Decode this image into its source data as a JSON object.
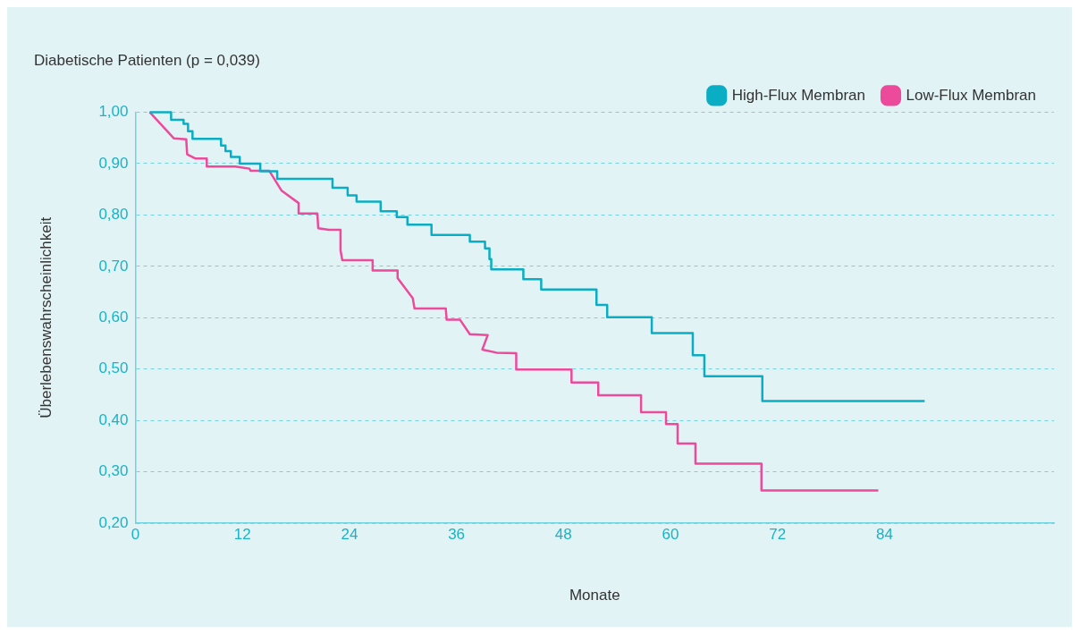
{
  "chart_data": {
    "type": "line",
    "title": "Diabetische Patienten (p = 0,039)",
    "xlabel": "Monate",
    "ylabel": "Überlebenswahrscheinlichkeit",
    "xlim": [
      0,
      103
    ],
    "xticks": [
      0,
      12,
      24,
      36,
      48,
      60,
      72,
      84
    ],
    "ylim": [
      0.2,
      1.0
    ],
    "yticks": [
      {
        "value": 0.2,
        "label": "0,20"
      },
      {
        "value": 0.3,
        "label": "0,30"
      },
      {
        "value": 0.4,
        "label": "0,40"
      },
      {
        "value": 0.5,
        "label": "0,50"
      },
      {
        "value": 0.6,
        "label": "0,60"
      },
      {
        "value": 0.7,
        "label": "0,70"
      },
      {
        "value": 0.8,
        "label": "0,80"
      },
      {
        "value": 0.9,
        "label": "0,90"
      },
      {
        "value": 1.0,
        "label": "1,00"
      }
    ],
    "grid": "y",
    "legend": "top right",
    "marker": "none",
    "line_style": "solid",
    "series": [
      {
        "name": "High-Flux Membran",
        "color": "#0aaec4",
        "x": [
          1.6,
          4.0,
          4.0,
          5.4,
          5.4,
          5.9,
          5.9,
          6.4,
          6.4,
          9.6,
          9.6,
          10.1,
          10.1,
          10.7,
          10.7,
          11.7,
          11.7,
          14.0,
          14.0,
          15.9,
          15.9,
          22.1,
          22.1,
          23.8,
          23.8,
          24.8,
          24.8,
          27.5,
          27.5,
          29.3,
          29.3,
          30.5,
          30.5,
          33.2,
          33.2,
          37.5,
          37.5,
          39.2,
          39.2,
          39.7,
          39.7,
          39.9,
          39.9,
          43.5,
          43.5,
          45.5,
          45.5,
          51.7,
          51.7,
          52.9,
          52.9,
          57.9,
          57.9,
          62.5,
          62.5,
          63.8,
          63.8,
          70.3,
          70.3,
          88.5
        ],
        "values": [
          1.0,
          1.0,
          0.985,
          0.985,
          0.977,
          0.977,
          0.963,
          0.963,
          0.948,
          0.948,
          0.935,
          0.935,
          0.924,
          0.924,
          0.913,
          0.913,
          0.9,
          0.9,
          0.885,
          0.885,
          0.87,
          0.87,
          0.853,
          0.853,
          0.838,
          0.838,
          0.826,
          0.826,
          0.807,
          0.807,
          0.796,
          0.796,
          0.781,
          0.781,
          0.761,
          0.761,
          0.748,
          0.748,
          0.735,
          0.735,
          0.714,
          0.714,
          0.694,
          0.694,
          0.675,
          0.675,
          0.655,
          0.655,
          0.625,
          0.625,
          0.601,
          0.601,
          0.57,
          0.57,
          0.527,
          0.527,
          0.486,
          0.486,
          0.438,
          0.438
        ]
      },
      {
        "name": "Low-Flux Membran",
        "color": "#ec4a9a",
        "x": [
          1.6,
          4.3,
          5.7,
          5.8,
          6.7,
          8.0,
          8.0,
          11.2,
          12.8,
          12.9,
          15.0,
          16.4,
          18.3,
          18.3,
          20.4,
          20.5,
          21.7,
          23.0,
          23.0,
          23.2,
          26.6,
          26.6,
          29.4,
          29.4,
          31.1,
          31.3,
          34.8,
          34.9,
          36.4,
          37.5,
          39.5,
          38.9,
          40.5,
          42.7,
          42.7,
          48.9,
          48.9,
          51.9,
          51.9,
          56.7,
          56.7,
          59.5,
          59.5,
          60.8,
          60.8,
          62.8,
          62.8,
          70.2,
          70.2,
          83.3
        ],
        "values": [
          1.0,
          0.949,
          0.947,
          0.918,
          0.91,
          0.91,
          0.894,
          0.894,
          0.89,
          0.886,
          0.886,
          0.847,
          0.823,
          0.803,
          0.803,
          0.774,
          0.771,
          0.771,
          0.731,
          0.712,
          0.712,
          0.692,
          0.692,
          0.677,
          0.638,
          0.618,
          0.618,
          0.596,
          0.596,
          0.568,
          0.566,
          0.538,
          0.532,
          0.531,
          0.499,
          0.499,
          0.474,
          0.474,
          0.449,
          0.449,
          0.416,
          0.416,
          0.393,
          0.393,
          0.355,
          0.355,
          0.316,
          0.316,
          0.264,
          0.264
        ]
      }
    ]
  }
}
